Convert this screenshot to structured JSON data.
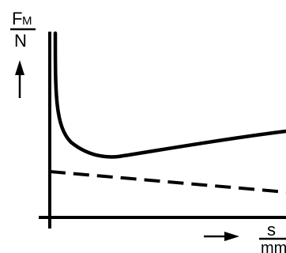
{
  "y_axis_label": {
    "symbol": "F",
    "subscript": "M",
    "unit": "N"
  },
  "x_axis_label": {
    "symbol": "s",
    "unit": "mm"
  },
  "colors": {
    "ink": "#000000",
    "background": "#ffffff"
  },
  "curves": [
    {
      "style": "solid",
      "shape": "steep drop near origin, minimum, then slow rise"
    },
    {
      "style": "dashed",
      "shape": "gently falling straight line"
    }
  ],
  "icons": [
    "up-arrow-icon",
    "right-arrow-icon"
  ]
}
